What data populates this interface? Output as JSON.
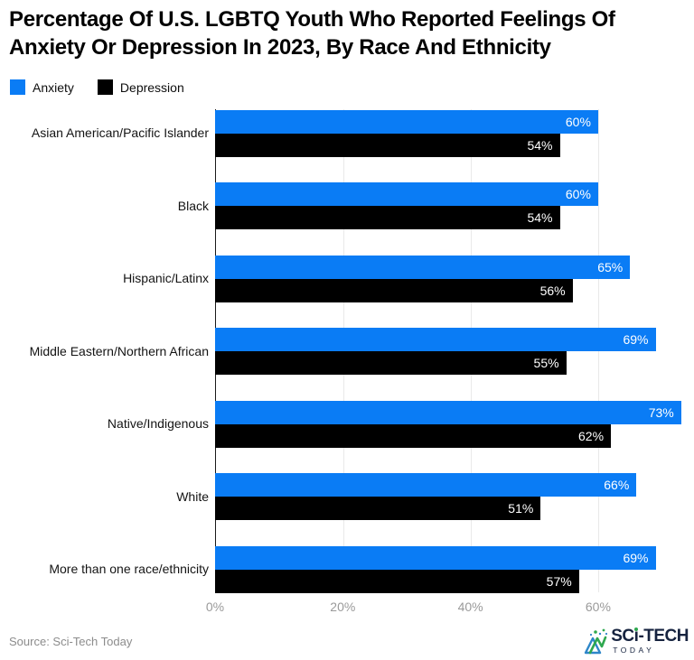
{
  "header": {
    "title": "Percentage Of U.S. LGBTQ Youth Who Reported Feelings Of Anxiety Or Depression In 2023, By Race And Ethnicity"
  },
  "legend": {
    "items": [
      {
        "label": "Anxiety",
        "color": "#0a7cf5"
      },
      {
        "label": "Depression",
        "color": "#000000"
      }
    ]
  },
  "chart_data": {
    "type": "bar",
    "orientation": "horizontal",
    "title": "Percentage Of U.S. LGBTQ Youth Who Reported Feelings Of Anxiety Or Depression In 2023, By Race And Ethnicity",
    "categories": [
      "Asian American/Pacific Islander",
      "Black",
      "Hispanic/Latinx",
      "Middle Eastern/Northern African",
      "Native/Indigenous",
      "White",
      "More than one race/ethnicity"
    ],
    "series": [
      {
        "name": "Anxiety",
        "color": "#0a7cf5",
        "values": [
          60,
          60,
          65,
          69,
          73,
          66,
          69
        ]
      },
      {
        "name": "Depression",
        "color": "#000000",
        "values": [
          54,
          54,
          56,
          55,
          62,
          51,
          57
        ]
      }
    ],
    "value_suffix": "%",
    "x_axis": {
      "tick_labels": [
        "0%",
        "20%",
        "40%",
        "60%"
      ],
      "tick_values": [
        0,
        20,
        40,
        60
      ],
      "max": 73.6,
      "grid": true
    },
    "legend_position": "top-left",
    "grid_color": "#e9e9e9",
    "axis_line_color": "#1a1a1a"
  },
  "footer": {
    "source": "Source: Sci-Tech Today",
    "logo": {
      "part1": "SC",
      "part2": "i",
      "part3": "-TECH",
      "bottom": "TODAY",
      "navy": "#16233f",
      "green": "#2fa84f",
      "icon_blue": "#2e86c9"
    }
  }
}
